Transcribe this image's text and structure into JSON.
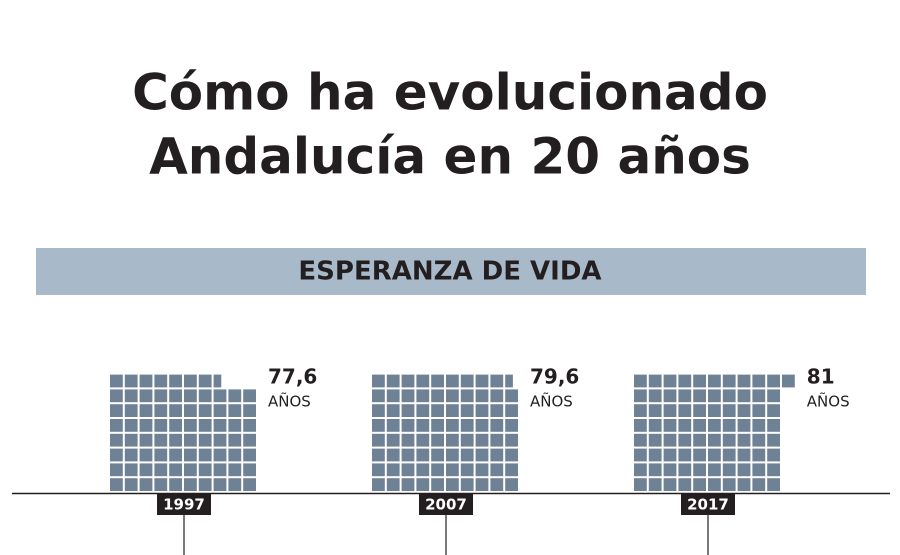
{
  "chart_data": {
    "type": "waffle",
    "title": "Cómo ha evolucionado Andalucía en 20 años",
    "title_lines": [
      "Cómo ha evolucionado",
      "Andalucía en 20 años"
    ],
    "subtitle": "ESPERANZA DE VIDA",
    "categories": [
      "1997",
      "2007",
      "2017"
    ],
    "values": [
      77.6,
      79.6,
      81
    ],
    "value_labels": [
      "77,6",
      "79,6",
      "81"
    ],
    "unit_label": "AÑOS",
    "color": "#6f8194",
    "banner_color": "#a8b9c9"
  }
}
